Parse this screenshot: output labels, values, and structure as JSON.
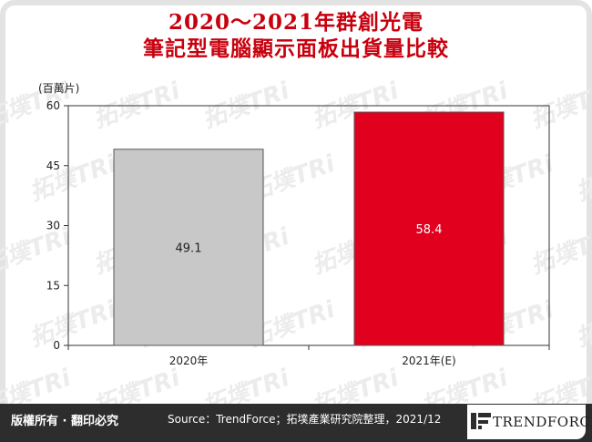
{
  "title_line1": "2020～2021年群創光電",
  "title_line2": "筆記型電腦顯示面板出貨量比較",
  "unit_label": "(百萬片)",
  "watermark_text": "拓墣TRi",
  "footer": {
    "copyright": "版權所有 · 翻印必究",
    "source": "Source：TrendForce；拓墣產業研究院整理，2021/12",
    "logo_text": "TRENDFORCE"
  },
  "colors": {
    "title": "#c8000e",
    "bar_2020": "#c8c8c8",
    "bar_2021": "#e1001e",
    "footer_bg": "#2d2d2d"
  },
  "chart_data": {
    "type": "bar",
    "categories": [
      "2020年",
      "2021年(E)"
    ],
    "values": [
      49.1,
      58.4
    ],
    "data_labels": [
      "49.1",
      "58.4"
    ],
    "ylim": [
      0,
      60
    ],
    "yticks": [
      0,
      15,
      30,
      45,
      60
    ],
    "ylabel": "(百萬片)",
    "grid": false,
    "legend": "none"
  }
}
